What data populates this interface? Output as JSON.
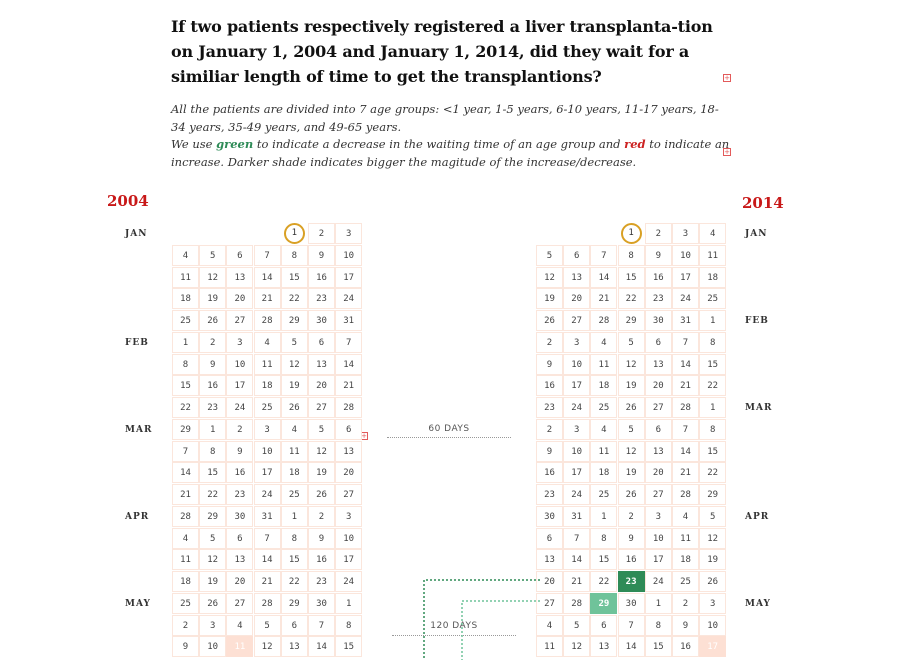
{
  "question": "If two patients respectively registered a liver transplanta-tion on January 1, 2004 and January 1, 2014, did they wait for a similiar length of time to get the transplantions?",
  "intro_line1": "All the patients are divided into 7 age groups: <1 year, 1-5 years, 6-10 years, 11-17 years, 18-34 years, 35-49 years, and 49-65 years.",
  "intro_pre_green": "We use ",
  "green_word": "green",
  "intro_mid": " to indicate a decrease in the waiting time of an age group and ",
  "red_word": "red",
  "intro_post": " to indicate an increase. Darker shade indicates bigger the magitude of the increase/decrease.",
  "expand_icon": "+",
  "year_left": "2004",
  "year_right": "2014",
  "colors": {
    "year": "#c81818",
    "green_dark": "#2e8b57",
    "green_light": "#6fc39a",
    "red_light": "#fde0d4",
    "circle": "#d9a024"
  },
  "days_labels": [
    "60 DAYS",
    "120 DAYS"
  ],
  "left_calendar": {
    "months": [
      "JAN",
      "FEB",
      "MAR",
      "APR",
      "MAY"
    ],
    "rows": [
      [
        "",
        "",
        "",
        "",
        "1",
        "2",
        "3"
      ],
      [
        "4",
        "5",
        "6",
        "7",
        "8",
        "9",
        "10"
      ],
      [
        "11",
        "12",
        "13",
        "14",
        "15",
        "16",
        "17"
      ],
      [
        "18",
        "19",
        "20",
        "21",
        "22",
        "23",
        "24"
      ],
      [
        "25",
        "26",
        "27",
        "28",
        "29",
        "30",
        "31"
      ],
      [
        "1",
        "2",
        "3",
        "4",
        "5",
        "6",
        "7"
      ],
      [
        "8",
        "9",
        "10",
        "11",
        "12",
        "13",
        "14"
      ],
      [
        "15",
        "16",
        "17",
        "18",
        "19",
        "20",
        "21"
      ],
      [
        "22",
        "23",
        "24",
        "25",
        "26",
        "27",
        "28"
      ],
      [
        "29",
        "1",
        "2",
        "3",
        "4",
        "5",
        "6"
      ],
      [
        "7",
        "8",
        "9",
        "10",
        "11",
        "12",
        "13"
      ],
      [
        "14",
        "15",
        "16",
        "17",
        "18",
        "19",
        "20"
      ],
      [
        "21",
        "22",
        "23",
        "24",
        "25",
        "26",
        "27"
      ],
      [
        "28",
        "29",
        "30",
        "31",
        "1",
        "2",
        "3"
      ],
      [
        "4",
        "5",
        "6",
        "7",
        "8",
        "9",
        "10"
      ],
      [
        "11",
        "12",
        "13",
        "14",
        "15",
        "16",
        "17"
      ],
      [
        "18",
        "19",
        "20",
        "21",
        "22",
        "23",
        "24"
      ],
      [
        "25",
        "26",
        "27",
        "28",
        "29",
        "30",
        "1"
      ],
      [
        "2",
        "3",
        "4",
        "5",
        "6",
        "7",
        "8"
      ],
      [
        "9",
        "10",
        "11",
        "12",
        "13",
        "14",
        "15"
      ]
    ]
  },
  "right_calendar": {
    "months": [
      "JAN",
      "FEB",
      "MAR",
      "APR",
      "MAY"
    ],
    "rows": [
      [
        "",
        "",
        "",
        "1",
        "2",
        "3",
        "4"
      ],
      [
        "5",
        "6",
        "7",
        "8",
        "9",
        "10",
        "11"
      ],
      [
        "12",
        "13",
        "14",
        "15",
        "16",
        "17",
        "18"
      ],
      [
        "19",
        "20",
        "21",
        "22",
        "23",
        "24",
        "25"
      ],
      [
        "26",
        "27",
        "28",
        "29",
        "30",
        "31",
        "1"
      ],
      [
        "2",
        "3",
        "4",
        "5",
        "6",
        "7",
        "8"
      ],
      [
        "9",
        "10",
        "11",
        "12",
        "13",
        "14",
        "15"
      ],
      [
        "16",
        "17",
        "18",
        "19",
        "20",
        "21",
        "22"
      ],
      [
        "23",
        "24",
        "25",
        "26",
        "27",
        "28",
        "1"
      ],
      [
        "2",
        "3",
        "4",
        "5",
        "6",
        "7",
        "8"
      ],
      [
        "9",
        "10",
        "11",
        "12",
        "13",
        "14",
        "15"
      ],
      [
        "16",
        "17",
        "18",
        "19",
        "20",
        "21",
        "22"
      ],
      [
        "23",
        "24",
        "25",
        "26",
        "27",
        "28",
        "29"
      ],
      [
        "30",
        "31",
        "1",
        "2",
        "3",
        "4",
        "5"
      ],
      [
        "6",
        "7",
        "8",
        "9",
        "10",
        "11",
        "12"
      ],
      [
        "13",
        "14",
        "15",
        "16",
        "17",
        "18",
        "19"
      ],
      [
        "20",
        "21",
        "22",
        "23",
        "24",
        "25",
        "26"
      ],
      [
        "27",
        "28",
        "29",
        "30",
        "1",
        "2",
        "3"
      ],
      [
        "4",
        "5",
        "6",
        "7",
        "8",
        "9",
        "10"
      ],
      [
        "11",
        "12",
        "13",
        "14",
        "15",
        "16",
        "17"
      ]
    ]
  }
}
